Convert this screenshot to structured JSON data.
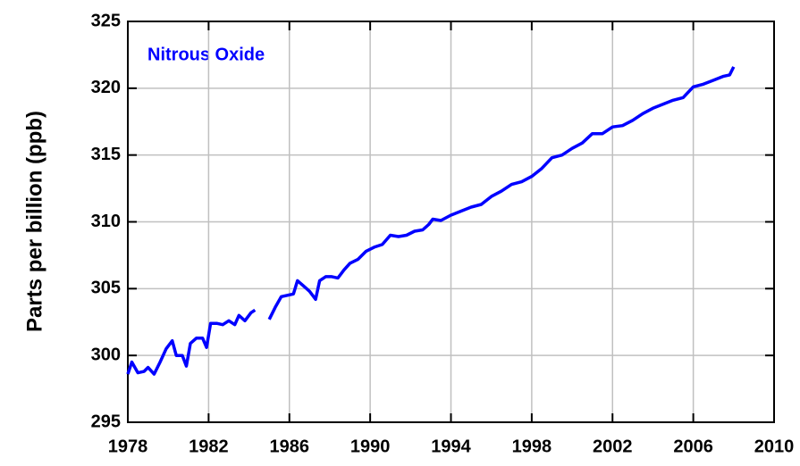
{
  "chart_data": {
    "type": "line",
    "annotation": "Nitrous Oxide",
    "y_label": "Parts per billion (ppb)",
    "xlim": [
      1978,
      2010
    ],
    "xticks": [
      1978,
      1982,
      1986,
      1990,
      1994,
      1998,
      2002,
      2006,
      2010
    ],
    "ylim": [
      295,
      325
    ],
    "yticks": [
      295,
      300,
      305,
      310,
      315,
      320,
      325
    ],
    "grid": true,
    "series": [
      {
        "color": "#0000ff",
        "x": [
          1978.0,
          1978.2,
          1978.5,
          1978.8,
          1979.0,
          1979.3,
          1979.6,
          1979.9,
          1980.2,
          1980.4,
          1980.7,
          1980.9,
          1981.1,
          1981.4,
          1981.7,
          1981.9,
          1982.1,
          1982.4,
          1982.7,
          1983.0,
          1983.3,
          1983.5,
          1983.8,
          1984.1,
          1984.3,
          1984.6,
          1985.0,
          1985.3,
          1985.6,
          1985.9,
          1986.2,
          1986.4,
          1986.7,
          1987.0,
          1987.3,
          1987.5,
          1987.8,
          1988.1,
          1988.4,
          1988.7,
          1989.0,
          1989.4,
          1989.8,
          1990.2,
          1990.6,
          1991.0,
          1991.4,
          1991.8,
          1992.2,
          1992.6,
          1992.9,
          1993.1,
          1993.5,
          1994.0,
          1994.5,
          1995.0,
          1995.5,
          1996.0,
          1996.5,
          1997.0,
          1997.5,
          1998.0,
          1998.5,
          1999.0,
          1999.5,
          2000.0,
          2000.5,
          2001.0,
          2001.5,
          2002.0,
          2002.5,
          2003.0,
          2003.5,
          2004.0,
          2004.5,
          2005.0,
          2005.5,
          2006.0,
          2006.5,
          2007.0,
          2007.5,
          2007.8,
          2008.0
        ],
        "values": [
          298.6,
          299.5,
          298.7,
          298.8,
          299.1,
          298.6,
          299.5,
          300.5,
          301.1,
          300.0,
          300.0,
          299.2,
          300.9,
          301.3,
          301.3,
          300.6,
          302.4,
          302.4,
          302.3,
          302.6,
          302.3,
          303.0,
          302.6,
          303.2,
          303.4,
          null,
          302.7,
          303.6,
          304.4,
          304.5,
          304.6,
          305.6,
          305.2,
          304.8,
          304.2,
          305.6,
          305.9,
          305.9,
          305.8,
          306.4,
          306.9,
          307.2,
          307.8,
          308.1,
          308.3,
          309.0,
          308.9,
          309.0,
          309.3,
          309.4,
          309.8,
          310.2,
          310.1,
          310.5,
          310.8,
          311.1,
          311.3,
          311.9,
          312.3,
          312.8,
          313.0,
          313.4,
          314.0,
          314.8,
          315.0,
          315.5,
          315.9,
          316.6,
          316.6,
          317.1,
          317.2,
          317.6,
          318.1,
          318.5,
          318.8,
          319.1,
          319.3,
          320.1,
          320.3,
          320.6,
          320.9,
          321.0,
          321.6
        ]
      }
    ]
  }
}
